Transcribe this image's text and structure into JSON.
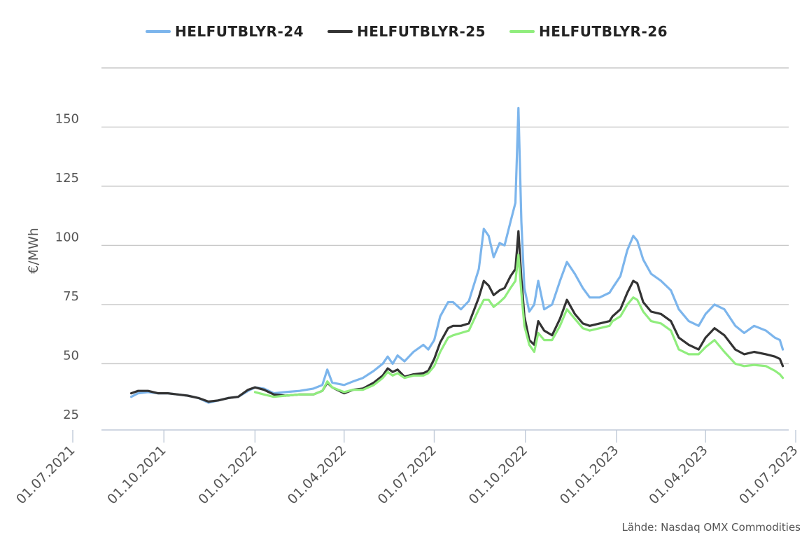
{
  "chart_data": {
    "type": "line",
    "title": "",
    "xlabel": "",
    "ylabel": "€/MWh",
    "ylim": [
      22,
      175
    ],
    "y_ticks": [
      25,
      50,
      75,
      100,
      125,
      150
    ],
    "y_tick_labels": [
      "25",
      "50",
      "75",
      "100",
      "125",
      "150"
    ],
    "x_range": [
      "2021-07-01",
      "2023-07-01"
    ],
    "x_ticks": [
      "2021-07-01",
      "2021-10-01",
      "2022-01-01",
      "2022-04-01",
      "2022-07-01",
      "2022-10-01",
      "2023-01-01",
      "2023-04-01",
      "2023-07-01"
    ],
    "x_tick_labels": [
      "01.07.2021",
      "01.10.2021",
      "01.01.2022",
      "01.04.2022",
      "01.07.2022",
      "01.10.2022",
      "01.01.2023",
      "01.04.2023",
      "01.07.2023"
    ],
    "grid": true,
    "legend_position": "top",
    "source": "Lähde: Nasdaq OMX Commodities",
    "series": [
      {
        "name": "HELFUTBLYR-24",
        "color": "#7cb5ec",
        "points": [
          [
            "2021-08-29",
            36
          ],
          [
            "2021-09-05",
            37.5
          ],
          [
            "2021-09-15",
            38
          ],
          [
            "2021-09-25",
            37.5
          ],
          [
            "2021-10-05",
            37.5
          ],
          [
            "2021-10-15",
            37
          ],
          [
            "2021-10-25",
            36.5
          ],
          [
            "2021-11-05",
            35.5
          ],
          [
            "2021-11-15",
            33.5
          ],
          [
            "2021-11-25",
            34.5
          ],
          [
            "2021-12-05",
            35.5
          ],
          [
            "2021-12-15",
            36
          ],
          [
            "2021-12-25",
            38.5
          ],
          [
            "2022-01-01",
            40
          ],
          [
            "2022-01-10",
            39.5
          ],
          [
            "2022-01-20",
            37.5
          ],
          [
            "2022-02-01",
            38
          ],
          [
            "2022-02-15",
            38.5
          ],
          [
            "2022-03-01",
            39.5
          ],
          [
            "2022-03-10",
            41
          ],
          [
            "2022-03-15",
            47.5
          ],
          [
            "2022-03-20",
            42
          ],
          [
            "2022-04-01",
            41
          ],
          [
            "2022-04-10",
            42.5
          ],
          [
            "2022-04-20",
            44
          ],
          [
            "2022-05-01",
            47
          ],
          [
            "2022-05-10",
            50
          ],
          [
            "2022-05-15",
            53
          ],
          [
            "2022-05-20",
            50
          ],
          [
            "2022-05-25",
            53.5
          ],
          [
            "2022-06-01",
            51
          ],
          [
            "2022-06-10",
            55
          ],
          [
            "2022-06-20",
            58
          ],
          [
            "2022-06-25",
            56
          ],
          [
            "2022-07-01",
            60
          ],
          [
            "2022-07-07",
            70
          ],
          [
            "2022-07-15",
            76
          ],
          [
            "2022-07-20",
            76
          ],
          [
            "2022-07-28",
            73
          ],
          [
            "2022-08-05",
            76.5
          ],
          [
            "2022-08-15",
            90
          ],
          [
            "2022-08-20",
            107
          ],
          [
            "2022-08-25",
            104
          ],
          [
            "2022-08-30",
            95
          ],
          [
            "2022-09-05",
            101
          ],
          [
            "2022-09-10",
            100
          ],
          [
            "2022-09-16",
            110
          ],
          [
            "2022-09-21",
            118
          ],
          [
            "2022-09-24",
            158
          ],
          [
            "2022-09-27",
            110
          ],
          [
            "2022-09-30",
            82
          ],
          [
            "2022-10-05",
            72
          ],
          [
            "2022-10-10",
            75
          ],
          [
            "2022-10-14",
            85
          ],
          [
            "2022-10-20",
            73
          ],
          [
            "2022-10-28",
            75
          ],
          [
            "2022-11-05",
            85
          ],
          [
            "2022-11-12",
            93
          ],
          [
            "2022-11-20",
            88
          ],
          [
            "2022-11-28",
            82
          ],
          [
            "2022-12-05",
            78
          ],
          [
            "2022-12-15",
            78
          ],
          [
            "2022-12-25",
            80
          ],
          [
            "2022-12-28",
            82
          ],
          [
            "2023-01-05",
            87
          ],
          [
            "2023-01-12",
            98
          ],
          [
            "2023-01-18",
            104
          ],
          [
            "2023-01-22",
            102
          ],
          [
            "2023-01-28",
            94
          ],
          [
            "2023-02-05",
            88
          ],
          [
            "2023-02-15",
            85
          ],
          [
            "2023-02-25",
            81
          ],
          [
            "2023-03-05",
            73
          ],
          [
            "2023-03-15",
            68
          ],
          [
            "2023-03-25",
            66
          ],
          [
            "2023-04-01",
            71
          ],
          [
            "2023-04-10",
            75
          ],
          [
            "2023-04-20",
            73
          ],
          [
            "2023-05-01",
            66
          ],
          [
            "2023-05-10",
            63
          ],
          [
            "2023-05-20",
            66
          ],
          [
            "2023-06-01",
            64
          ],
          [
            "2023-06-10",
            61
          ],
          [
            "2023-06-15",
            60
          ],
          [
            "2023-06-18",
            56
          ]
        ]
      },
      {
        "name": "HELFUTBLYR-25",
        "color": "#333333",
        "points": [
          [
            "2021-08-29",
            37.5
          ],
          [
            "2021-09-05",
            38.5
          ],
          [
            "2021-09-15",
            38.5
          ],
          [
            "2021-09-25",
            37.5
          ],
          [
            "2021-10-05",
            37.5
          ],
          [
            "2021-10-15",
            37
          ],
          [
            "2021-10-25",
            36.5
          ],
          [
            "2021-11-05",
            35.5
          ],
          [
            "2021-11-15",
            34
          ],
          [
            "2021-11-25",
            34.5
          ],
          [
            "2021-12-05",
            35.5
          ],
          [
            "2021-12-15",
            36
          ],
          [
            "2021-12-25",
            39
          ],
          [
            "2022-01-01",
            40
          ],
          [
            "2022-01-10",
            39
          ],
          [
            "2022-01-20",
            37
          ],
          [
            "2022-02-01",
            36.5
          ],
          [
            "2022-02-15",
            37
          ],
          [
            "2022-03-01",
            37
          ],
          [
            "2022-03-10",
            38.5
          ],
          [
            "2022-03-15",
            42
          ],
          [
            "2022-03-20",
            40
          ],
          [
            "2022-04-01",
            37.5
          ],
          [
            "2022-04-10",
            39
          ],
          [
            "2022-04-20",
            39.5
          ],
          [
            "2022-05-01",
            42
          ],
          [
            "2022-05-10",
            45
          ],
          [
            "2022-05-15",
            48
          ],
          [
            "2022-05-20",
            46.5
          ],
          [
            "2022-05-25",
            47.5
          ],
          [
            "2022-06-01",
            44.5
          ],
          [
            "2022-06-10",
            45.5
          ],
          [
            "2022-06-20",
            46
          ],
          [
            "2022-06-25",
            47
          ],
          [
            "2022-07-01",
            52
          ],
          [
            "2022-07-07",
            59
          ],
          [
            "2022-07-15",
            65
          ],
          [
            "2022-07-20",
            66
          ],
          [
            "2022-07-28",
            66
          ],
          [
            "2022-08-05",
            67
          ],
          [
            "2022-08-15",
            78
          ],
          [
            "2022-08-20",
            85
          ],
          [
            "2022-08-25",
            83
          ],
          [
            "2022-08-30",
            79
          ],
          [
            "2022-09-05",
            81
          ],
          [
            "2022-09-10",
            82
          ],
          [
            "2022-09-16",
            87
          ],
          [
            "2022-09-21",
            90
          ],
          [
            "2022-09-24",
            106
          ],
          [
            "2022-09-27",
            86
          ],
          [
            "2022-09-30",
            70
          ],
          [
            "2022-10-05",
            60
          ],
          [
            "2022-10-10",
            58
          ],
          [
            "2022-10-14",
            68
          ],
          [
            "2022-10-20",
            64
          ],
          [
            "2022-10-28",
            62
          ],
          [
            "2022-11-05",
            69
          ],
          [
            "2022-11-12",
            77
          ],
          [
            "2022-11-20",
            71
          ],
          [
            "2022-11-28",
            67
          ],
          [
            "2022-12-05",
            66
          ],
          [
            "2022-12-15",
            67
          ],
          [
            "2022-12-25",
            68
          ],
          [
            "2022-12-28",
            70
          ],
          [
            "2023-01-05",
            73
          ],
          [
            "2023-01-12",
            80
          ],
          [
            "2023-01-18",
            85
          ],
          [
            "2023-01-22",
            84
          ],
          [
            "2023-01-28",
            76
          ],
          [
            "2023-02-05",
            72
          ],
          [
            "2023-02-15",
            71
          ],
          [
            "2023-02-25",
            68
          ],
          [
            "2023-03-05",
            61
          ],
          [
            "2023-03-15",
            58
          ],
          [
            "2023-03-25",
            56
          ],
          [
            "2023-04-01",
            61
          ],
          [
            "2023-04-10",
            65
          ],
          [
            "2023-04-20",
            62
          ],
          [
            "2023-05-01",
            56
          ],
          [
            "2023-05-10",
            54
          ],
          [
            "2023-05-20",
            55
          ],
          [
            "2023-06-01",
            54
          ],
          [
            "2023-06-10",
            53
          ],
          [
            "2023-06-15",
            52
          ],
          [
            "2023-06-18",
            49
          ]
        ]
      },
      {
        "name": "HELFUTBLYR-26",
        "color": "#90ed7d",
        "points": [
          [
            "2022-01-01",
            38
          ],
          [
            "2022-01-10",
            37
          ],
          [
            "2022-01-20",
            36
          ],
          [
            "2022-02-01",
            36.5
          ],
          [
            "2022-02-15",
            37
          ],
          [
            "2022-03-01",
            37
          ],
          [
            "2022-03-10",
            38.5
          ],
          [
            "2022-03-15",
            42.5
          ],
          [
            "2022-03-20",
            40
          ],
          [
            "2022-04-01",
            38
          ],
          [
            "2022-04-10",
            39
          ],
          [
            "2022-04-20",
            39
          ],
          [
            "2022-05-01",
            41
          ],
          [
            "2022-05-10",
            44
          ],
          [
            "2022-05-15",
            46.5
          ],
          [
            "2022-05-20",
            45
          ],
          [
            "2022-05-25",
            46
          ],
          [
            "2022-06-01",
            44
          ],
          [
            "2022-06-10",
            45
          ],
          [
            "2022-06-20",
            45
          ],
          [
            "2022-06-25",
            46
          ],
          [
            "2022-07-01",
            49
          ],
          [
            "2022-07-07",
            55
          ],
          [
            "2022-07-15",
            61
          ],
          [
            "2022-07-20",
            62
          ],
          [
            "2022-07-28",
            63
          ],
          [
            "2022-08-05",
            64
          ],
          [
            "2022-08-15",
            73
          ],
          [
            "2022-08-20",
            77
          ],
          [
            "2022-08-25",
            77
          ],
          [
            "2022-08-30",
            74
          ],
          [
            "2022-09-05",
            76
          ],
          [
            "2022-09-10",
            78
          ],
          [
            "2022-09-16",
            82
          ],
          [
            "2022-09-21",
            85
          ],
          [
            "2022-09-24",
            96
          ],
          [
            "2022-09-27",
            80
          ],
          [
            "2022-09-30",
            66
          ],
          [
            "2022-10-05",
            58
          ],
          [
            "2022-10-10",
            55
          ],
          [
            "2022-10-14",
            63
          ],
          [
            "2022-10-20",
            60
          ],
          [
            "2022-10-28",
            60
          ],
          [
            "2022-11-05",
            66
          ],
          [
            "2022-11-12",
            73
          ],
          [
            "2022-11-20",
            69
          ],
          [
            "2022-11-28",
            65
          ],
          [
            "2022-12-05",
            64
          ],
          [
            "2022-12-15",
            65
          ],
          [
            "2022-12-25",
            66
          ],
          [
            "2022-12-28",
            68
          ],
          [
            "2023-01-05",
            70
          ],
          [
            "2023-01-12",
            75
          ],
          [
            "2023-01-18",
            78
          ],
          [
            "2023-01-22",
            77
          ],
          [
            "2023-01-28",
            72
          ],
          [
            "2023-02-05",
            68
          ],
          [
            "2023-02-15",
            67
          ],
          [
            "2023-02-25",
            64
          ],
          [
            "2023-03-05",
            56
          ],
          [
            "2023-03-15",
            54
          ],
          [
            "2023-03-25",
            54
          ],
          [
            "2023-04-01",
            57
          ],
          [
            "2023-04-10",
            60
          ],
          [
            "2023-04-20",
            55
          ],
          [
            "2023-05-01",
            50
          ],
          [
            "2023-05-10",
            49
          ],
          [
            "2023-05-20",
            49.5
          ],
          [
            "2023-06-01",
            49
          ],
          [
            "2023-06-10",
            47
          ],
          [
            "2023-06-15",
            45.5
          ],
          [
            "2023-06-18",
            44
          ]
        ]
      }
    ]
  }
}
